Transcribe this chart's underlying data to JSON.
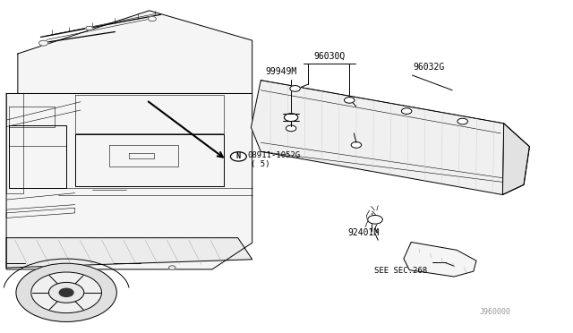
{
  "bg_color": "#ffffff",
  "line_color": "#000000",
  "fig_width": 6.4,
  "fig_height": 3.72,
  "dpi": 100,
  "lw": 0.7,
  "lw_thin": 0.4,
  "lw_thick": 1.5,
  "label_96030Q": "96030Q",
  "label_96032G": "96032G",
  "label_99949M": "99949M",
  "label_part": "08911-1052G",
  "label_qty": "( 5)",
  "label_N": "N",
  "label_92401M": "92401M",
  "label_see": "SEE SEC.268",
  "label_drawing": "J960000",
  "fs_main": 7.0,
  "fs_small": 6.5,
  "fs_tiny": 5.5
}
